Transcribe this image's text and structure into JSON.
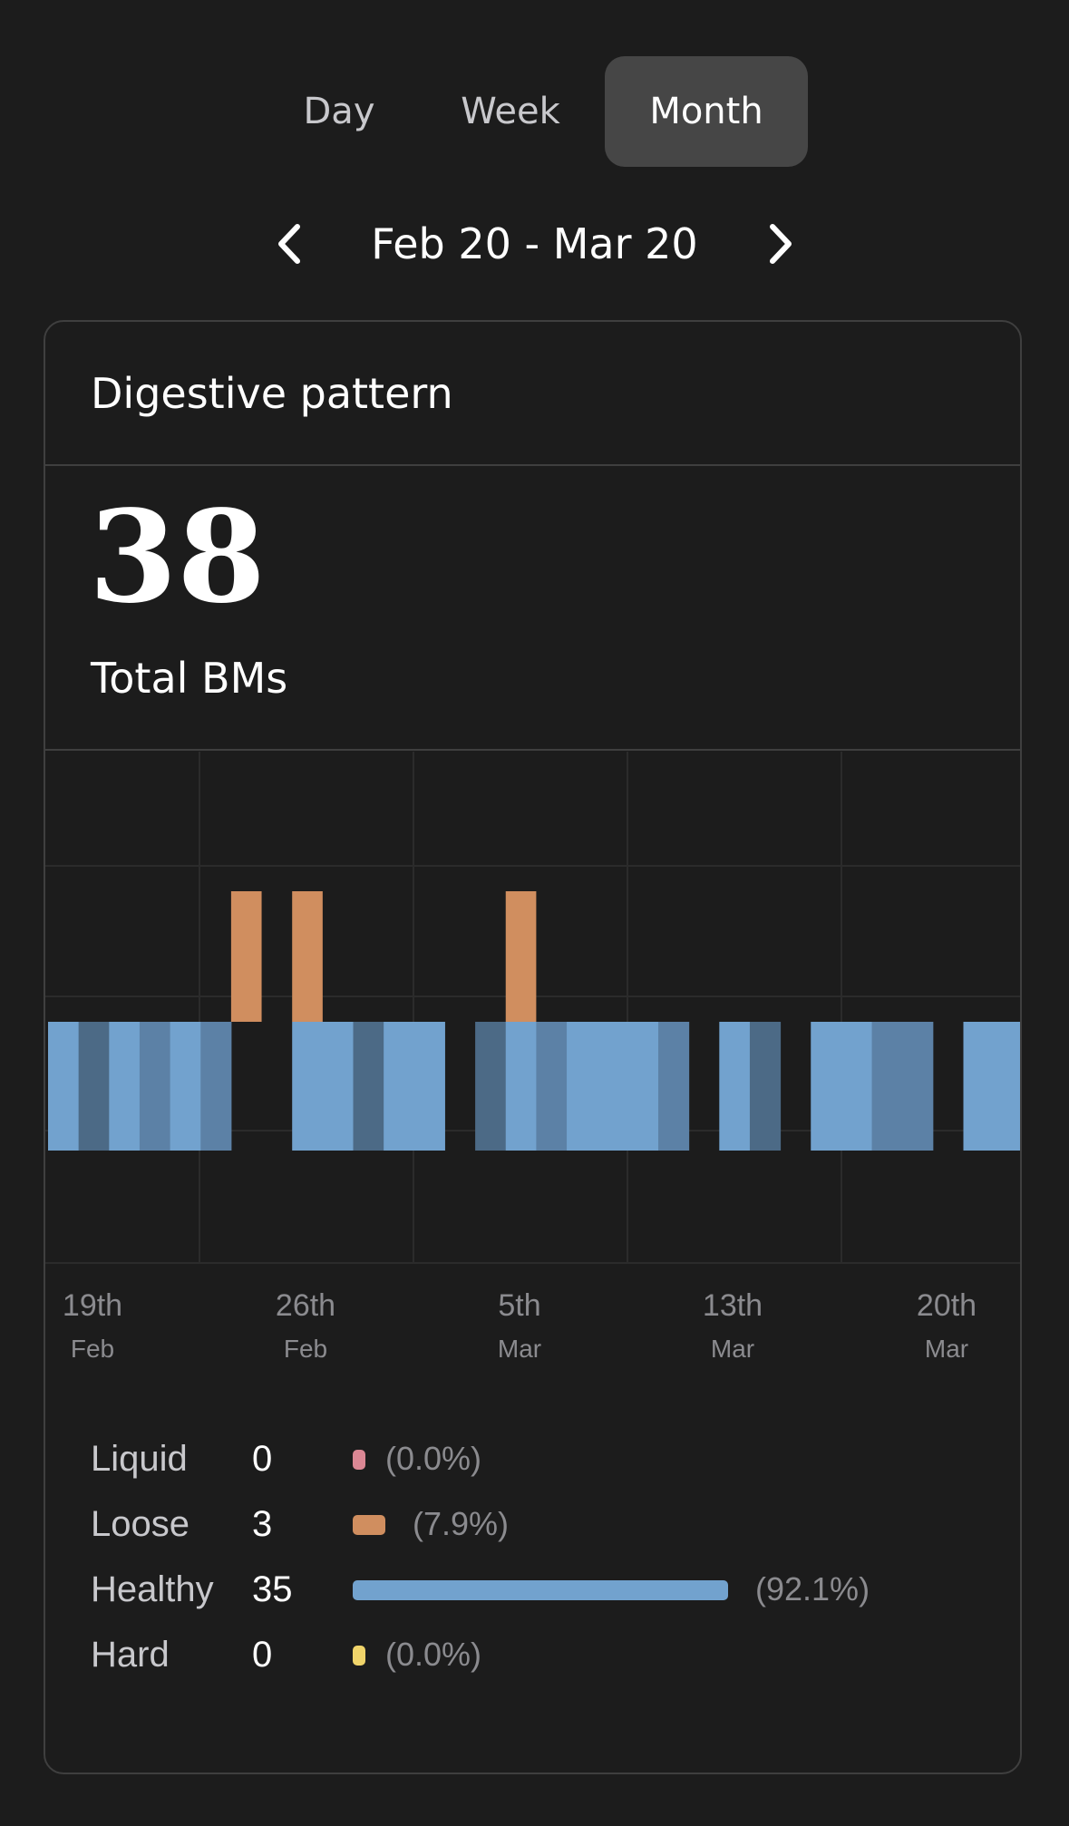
{
  "tabs": [
    {
      "label": "Day",
      "active": false
    },
    {
      "label": "Week",
      "active": false
    },
    {
      "label": "Month",
      "active": true
    }
  ],
  "date_range": "Feb 20 - Mar 20",
  "card": {
    "title": "Digestive pattern",
    "total_value": "38",
    "total_label": "Total BMs"
  },
  "colors": {
    "healthy": "#72a2ce",
    "healthy_variants": [
      "#72a2ce",
      "#4c6a86",
      "#5c81a6"
    ],
    "loose": "#d08e5f",
    "liquid": "#db8794",
    "hard": "#f0d46a"
  },
  "chart_data": {
    "type": "bar",
    "title": "",
    "x_range": [
      "Feb 18",
      "Mar 21"
    ],
    "x_ticks": [
      {
        "day": "19th",
        "month": "Feb"
      },
      {
        "day": "26th",
        "month": "Feb"
      },
      {
        "day": "5th",
        "month": "Mar"
      },
      {
        "day": "13th",
        "month": "Mar"
      },
      {
        "day": "20th",
        "month": "Mar"
      }
    ],
    "series": [
      {
        "name": "Healthy",
        "days": [
          "Feb 18",
          "Feb 19",
          "Feb 20",
          "Feb 21",
          "Feb 22",
          "Feb 23",
          "Feb 26",
          "Feb 27",
          "Feb 28",
          "Mar 1",
          "Mar 2",
          "Mar 4",
          "Mar 5",
          "Mar 6",
          "Mar 7",
          "Mar 8",
          "Mar 9",
          "Mar 10",
          "Mar 12",
          "Mar 13",
          "Mar 15",
          "Mar 16",
          "Mar 17",
          "Mar 18",
          "Mar 20",
          "Mar 21"
        ],
        "shade": [
          0,
          1,
          0,
          2,
          0,
          2,
          0,
          0,
          1,
          0,
          0,
          1,
          0,
          2,
          0,
          0,
          0,
          2,
          0,
          1,
          0,
          0,
          2,
          2,
          0,
          0
        ]
      },
      {
        "name": "Loose",
        "days": [
          "Feb 24",
          "Feb 26",
          "Mar 5"
        ]
      }
    ],
    "legend": [
      {
        "name": "Liquid",
        "count": 0,
        "percent": "(0.0%)",
        "share": 0.0
      },
      {
        "name": "Loose",
        "count": 3,
        "percent": "(7.9%)",
        "share": 0.079
      },
      {
        "name": "Healthy",
        "count": 35,
        "percent": "(92.1%)",
        "share": 0.921
      },
      {
        "name": "Hard",
        "count": 0,
        "percent": "(0.0%)",
        "share": 0.0
      }
    ]
  }
}
